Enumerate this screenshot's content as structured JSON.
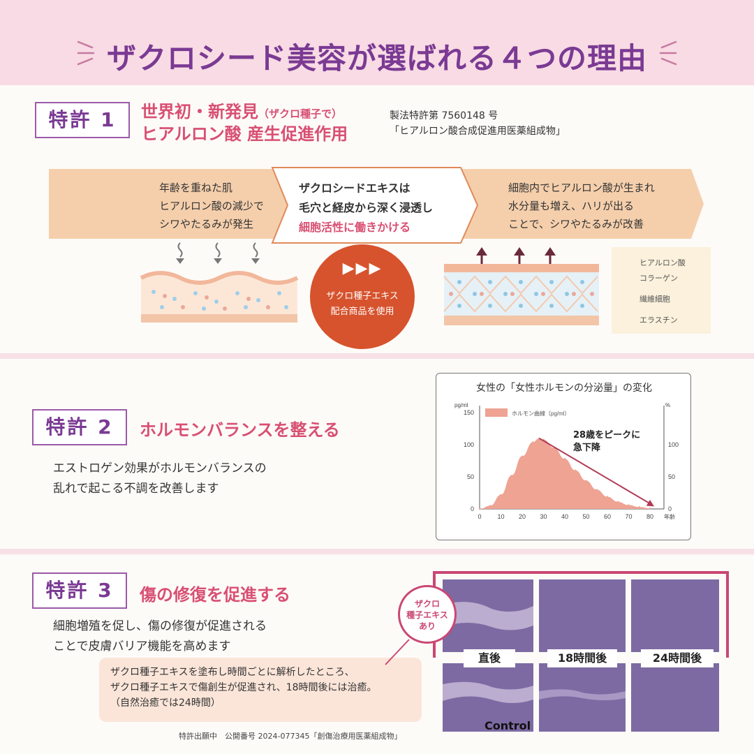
{
  "header": {
    "title": "ザクロシード美容が選ばれる４つの理由"
  },
  "patent1": {
    "badge": "特許 1",
    "title_a": "世界初・新発見",
    "title_a_note": "（ザクロ種子で）",
    "title_b": "ヒアルロン酸 産生促進作用",
    "ref_line1": "製法特許第 7560148 号",
    "ref_line2": "「ヒアルロン酸合成促進用医薬組成物」",
    "flow_left": [
      "年齢を重ねた肌",
      "ヒアルロン酸の減少で",
      "シワやたるみが発生"
    ],
    "flow_mid_1": "ザクロシードエキスは",
    "flow_mid_2": "毛穴と経皮から深く浸透し",
    "flow_mid_3": "細胞活性に働きかける",
    "flow_right": [
      "細胞内でヒアルロン酸が生まれ",
      "水分量も増え、ハリが出る",
      "ことで、シワやたるみが改善"
    ],
    "circle_arrows": "▶▶▶",
    "circle_line1": "ザクロ種子エキス",
    "circle_line2": "配合商品を使用",
    "legend": {
      "hyaluronic": "ヒアルロン酸",
      "collagen": "コラーゲン",
      "fibroblast": "繊維細胞",
      "elastin": "エラスチン"
    },
    "colors": {
      "arrow_band": "#f5cfac",
      "circle": "#d6532d",
      "pink": "#d84f72"
    }
  },
  "patent2": {
    "badge": "特許 2",
    "title": "ホルモンバランスを整える",
    "desc_1": "エストロゲン効果がホルモンバランスの",
    "desc_2": "乱れで起こる不調を改善します"
  },
  "chart_data": {
    "type": "area",
    "title": "女性の「女性ホルモンの分泌量」の変化",
    "legend": "ホルモン曲線（pg/ml）",
    "y_unit_left": "pg/ml",
    "y_unit_right": "%",
    "x_unit": "年齢",
    "x": [
      0,
      5,
      10,
      15,
      20,
      25,
      28,
      30,
      35,
      40,
      45,
      50,
      55,
      60,
      65,
      70,
      75,
      80
    ],
    "values": [
      0,
      5,
      22,
      52,
      82,
      104,
      110,
      108,
      95,
      78,
      60,
      44,
      30,
      19,
      11,
      6,
      3,
      1
    ],
    "x_ticks": [
      "0",
      "10",
      "20",
      "30",
      "40",
      "50",
      "60",
      "70",
      "80"
    ],
    "y_ticks_left": [
      "0",
      "50",
      "100",
      "150"
    ],
    "y_ticks_right": [
      "0",
      "50",
      "100"
    ],
    "ylim": [
      0,
      150
    ],
    "annotation_1": "28歳をピークに",
    "annotation_2": "急下降",
    "colors": {
      "area": "#eea393",
      "arrow": "#b03a55"
    }
  },
  "patent3": {
    "badge": "特許 3",
    "title": "傷の修復を促進する",
    "desc_1": "細胞増殖を促し、傷の修復が促進される",
    "desc_2": "ことで皮膚バリア機能を高めます",
    "note_1": "ザクロ種子エキスを塗布し時間ごとに解析したところ、",
    "note_2": "ザクロ種子エキスで傷創生が促進され、18時間後には治癒。",
    "note_3": "（自然治癒では24時間）",
    "footnote": "特許出願中　公開番号 2024-077345「創傷治療用医薬組成物」",
    "bubble_1": "ザクロ",
    "bubble_2": "種子エキス",
    "bubble_3": "あり",
    "label_immediate": "直後",
    "label_18h": "18時間後",
    "label_24h": "24時間後",
    "label_control": "Control"
  }
}
